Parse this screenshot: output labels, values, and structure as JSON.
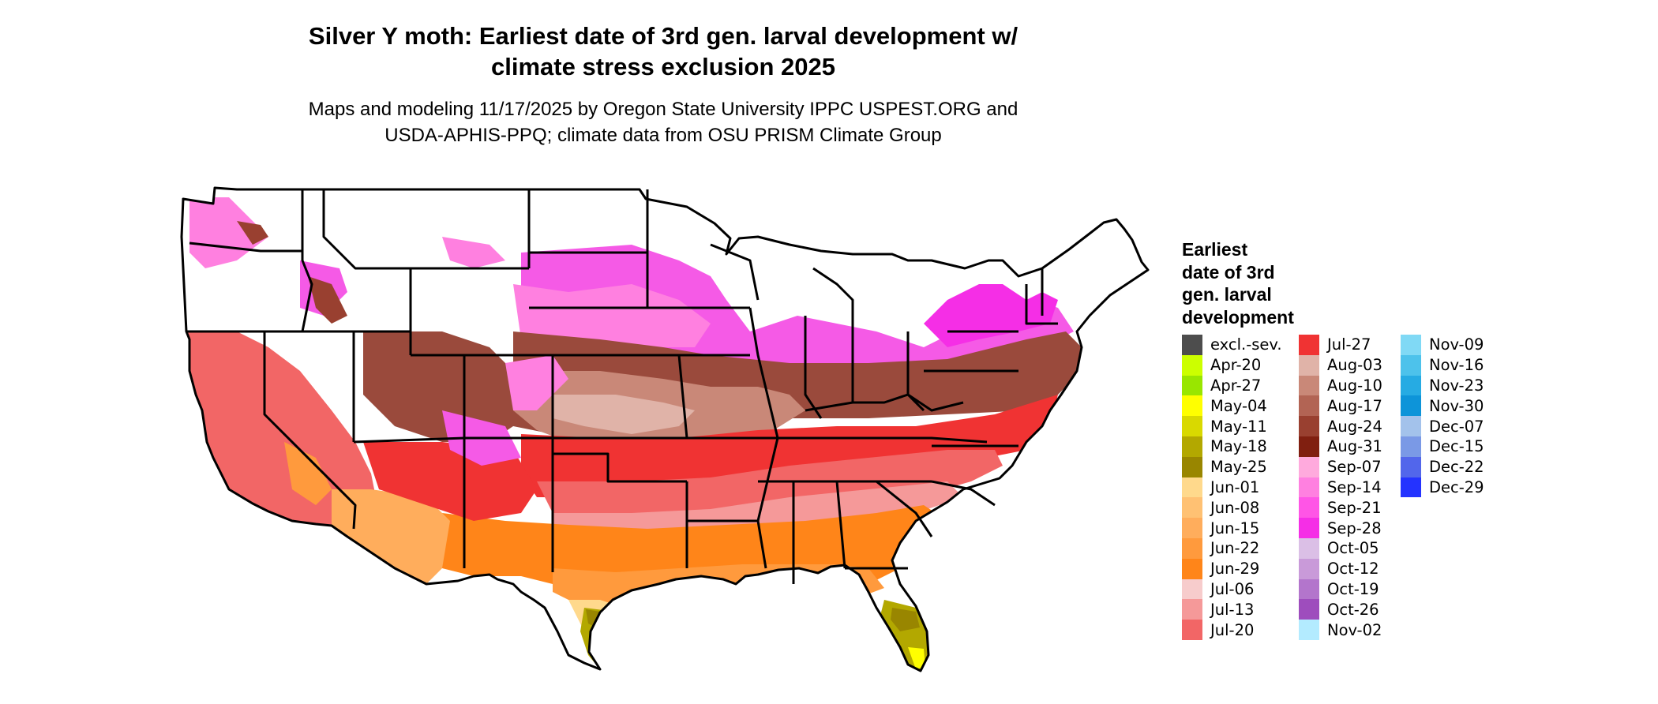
{
  "title": {
    "line1": "Silver Y moth: Earliest date of 3rd gen. larval development w/",
    "line2": "climate stress exclusion 2025"
  },
  "subtitle": {
    "line1": "Maps and modeling 11/17/2025 by Oregon State University IPPC USPEST.ORG and",
    "line2": "USDA-APHIS-PPQ; climate data from OSU PRISM Climate Group"
  },
  "legend": {
    "title_lines": [
      "Earliest",
      "date of 3rd",
      "gen. larval",
      "development"
    ],
    "columns": [
      [
        {
          "label": "excl.-sev.",
          "color": "#4d4d4d"
        },
        {
          "label": "Apr-20",
          "color": "#ccff00"
        },
        {
          "label": "Apr-27",
          "color": "#99e600"
        },
        {
          "label": "May-04",
          "color": "#ffff00"
        },
        {
          "label": "May-11",
          "color": "#d9d900"
        },
        {
          "label": "May-18",
          "color": "#b3a800"
        },
        {
          "label": "May-25",
          "color": "#998600"
        },
        {
          "label": "Jun-01",
          "color": "#ffd98c"
        },
        {
          "label": "Jun-08",
          "color": "#ffc173"
        },
        {
          "label": "Jun-15",
          "color": "#ffad5c"
        },
        {
          "label": "Jun-22",
          "color": "#ff9a3d"
        },
        {
          "label": "Jun-29",
          "color": "#ff8519"
        },
        {
          "label": "Jul-06",
          "color": "#f7cccc"
        },
        {
          "label": "Jul-13",
          "color": "#f59999"
        },
        {
          "label": "Jul-20",
          "color": "#f26666"
        }
      ],
      [
        {
          "label": "Jul-27",
          "color": "#f03333"
        },
        {
          "label": "Aug-03",
          "color": "#e0b3a8"
        },
        {
          "label": "Aug-10",
          "color": "#c98878"
        },
        {
          "label": "Aug-17",
          "color": "#b26454"
        },
        {
          "label": "Aug-24",
          "color": "#994030"
        },
        {
          "label": "Aug-31",
          "color": "#801f10"
        },
        {
          "label": "Sep-07",
          "color": "#ffaadd"
        },
        {
          "label": "Sep-14",
          "color": "#ff80e0"
        },
        {
          "label": "Sep-21",
          "color": "#ff55e6"
        },
        {
          "label": "Sep-28",
          "color": "#f52ee6"
        },
        {
          "label": "Oct-05",
          "color": "#dbbfe6"
        },
        {
          "label": "Oct-12",
          "color": "#c99ad9"
        },
        {
          "label": "Oct-19",
          "color": "#b375cc"
        },
        {
          "label": "Oct-26",
          "color": "#9e4dbd"
        },
        {
          "label": "Nov-02",
          "color": "#b3ebff"
        }
      ],
      [
        {
          "label": "Nov-09",
          "color": "#80d9f5"
        },
        {
          "label": "Nov-16",
          "color": "#4dc2eb"
        },
        {
          "label": "Nov-23",
          "color": "#26abe3"
        },
        {
          "label": "Nov-30",
          "color": "#0d94d9"
        },
        {
          "label": "Dec-07",
          "color": "#a3c2eb"
        },
        {
          "label": "Dec-15",
          "color": "#7a99e6"
        },
        {
          "label": "Dec-22",
          "color": "#5266eb"
        },
        {
          "label": "Dec-29",
          "color": "#2433ff"
        }
      ]
    ]
  }
}
